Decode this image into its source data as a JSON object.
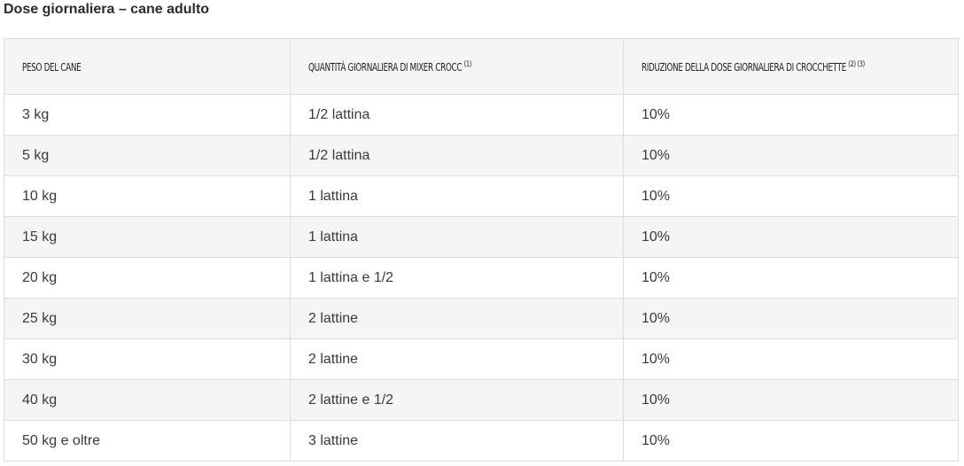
{
  "title": "Dose giornaliera – cane adulto",
  "table": {
    "headers": [
      {
        "label": "PESO DEL CANE",
        "sup": ""
      },
      {
        "label": "QUANTITÀ GIORNALIERA DI MIXER CROCC",
        "sup": "(1)"
      },
      {
        "label": "RIDUZIONE DELLA DOSE GIORNALIERA DI CROCCHETTE",
        "sup": "(2) (3)"
      }
    ],
    "rows": [
      [
        "3 kg",
        "1/2 lattina",
        "10%"
      ],
      [
        "5 kg",
        "1/2 lattina",
        "10%"
      ],
      [
        "10 kg",
        "1 lattina",
        "10%"
      ],
      [
        "15 kg",
        "1 lattina",
        "10%"
      ],
      [
        "20 kg",
        "1 lattina e 1/2",
        "10%"
      ],
      [
        "25 kg",
        "2 lattine",
        "10%"
      ],
      [
        "30 kg",
        "2 lattine",
        "10%"
      ],
      [
        "40 kg",
        "2 lattine e 1/2",
        "10%"
      ],
      [
        "50 kg e oltre",
        "3 lattine",
        "10%"
      ]
    ]
  },
  "colors": {
    "header_bg": "#f5f5f5",
    "border": "#dcdcdc",
    "text": "#3a3a3a"
  }
}
